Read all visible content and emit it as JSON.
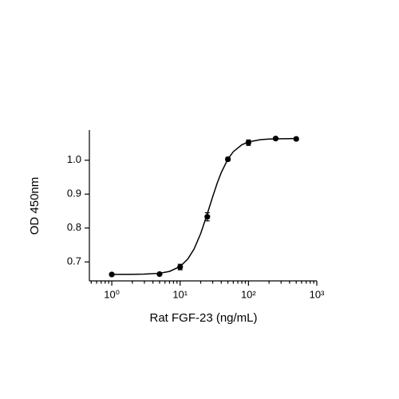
{
  "chart_data": {
    "type": "scatter",
    "x_label": "Rat FGF-23 (ng/mL)",
    "y_label": "OD 450nm",
    "x_log": true,
    "x_minor_ticks": true,
    "xlim": [
      0.47,
      1000
    ],
    "xticks": [
      {
        "value": 1,
        "label": "10⁰"
      },
      {
        "value": 10,
        "label": "10¹"
      },
      {
        "value": 100,
        "label": "10²"
      },
      {
        "value": 1000,
        "label": "10³"
      }
    ],
    "ylim": [
      0.644,
      1.089
    ],
    "yticks": [
      0.7,
      0.8,
      0.9,
      {
        "value": 1,
        "label": "1.0"
      }
    ],
    "series": [
      {
        "style": "points",
        "color": "#000000",
        "x": [
          1,
          5,
          10,
          25,
          50,
          100,
          250,
          500
        ],
        "values": [
          0.663,
          0.664,
          0.685,
          0.833,
          1.003,
          1.052,
          1.064,
          1.063
        ],
        "errors": [
          0.003,
          0.003,
          0.008,
          0.012,
          0.005,
          0.008,
          0.004,
          0.004
        ]
      },
      {
        "style": "line",
        "color": "#000000",
        "x": [
          1,
          2,
          3,
          5,
          7,
          10,
          13,
          16,
          20,
          25,
          30,
          35,
          40,
          50,
          60,
          80,
          100,
          150,
          200,
          300,
          500
        ],
        "values": [
          0.663,
          0.6633,
          0.6639,
          0.6665,
          0.672,
          0.6864,
          0.7089,
          0.7382,
          0.7838,
          0.842,
          0.8928,
          0.9334,
          0.9638,
          1.0034,
          1.0252,
          1.0457,
          1.054,
          1.0607,
          1.0625,
          1.0635,
          1.064
        ]
      }
    ]
  }
}
